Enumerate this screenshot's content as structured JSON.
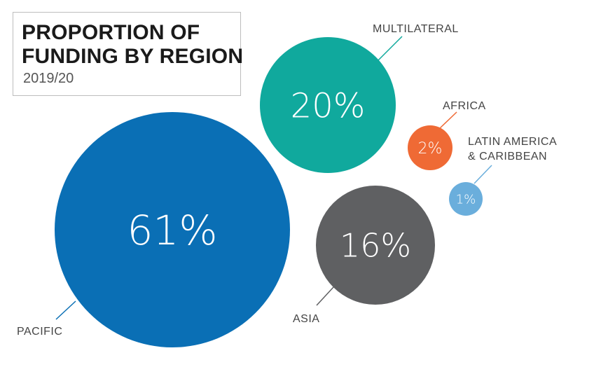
{
  "title": {
    "line1": "PROPORTION OF",
    "line2": "FUNDING BY REGION",
    "subtitle": "2019/20"
  },
  "chart_data": {
    "type": "bubble",
    "title": "PROPORTION OF FUNDING BY REGION",
    "subtitle": "2019/20",
    "unit": "%",
    "series": [
      {
        "name": "PACIFIC",
        "value": 61,
        "label": "61%",
        "color": "#0a6fb5"
      },
      {
        "name": "MULTILATERAL",
        "value": 20,
        "label": "20%",
        "color": "#10a99d"
      },
      {
        "name": "ASIA",
        "value": 16,
        "label": "16%",
        "color": "#5f6062"
      },
      {
        "name": "AFRICA",
        "value": 2,
        "label": "2%",
        "color": "#ef6a35"
      },
      {
        "name": "LATIN AMERICA & CARIBBEAN",
        "value": 1,
        "label": "1%",
        "color": "#6aaedc",
        "name_lines": [
          "LATIN AMERICA",
          "& CARIBBEAN"
        ]
      }
    ]
  }
}
